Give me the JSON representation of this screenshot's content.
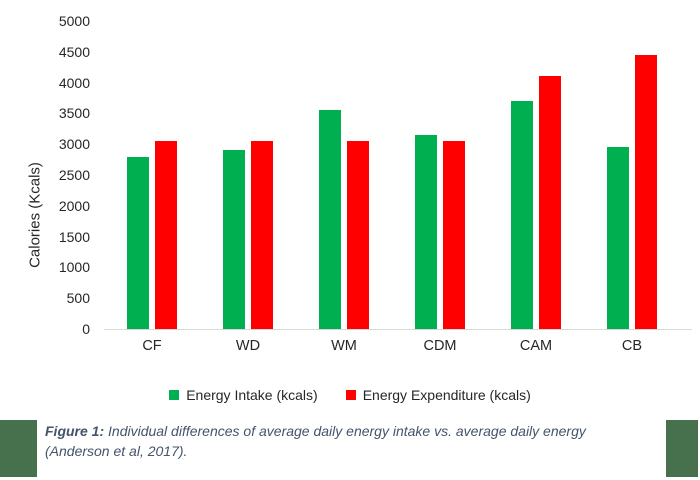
{
  "chart_data": {
    "type": "bar",
    "title": "",
    "xlabel": "",
    "ylabel": "Calories (Kcals)",
    "ylim": [
      0,
      5000
    ],
    "ytick_step": 500,
    "grid": false,
    "legend_position": "bottom",
    "categories": [
      "CF",
      "WD",
      "WM",
      "CDM",
      "CAM",
      "CB"
    ],
    "series": [
      {
        "id": "intake",
        "name": "Energy Intake (kcals)",
        "color": "#00B050",
        "values": [
          2800,
          2900,
          3550,
          3150,
          3700,
          2950
        ]
      },
      {
        "id": "expenditure",
        "name": "Energy Expenditure (kcals)",
        "color": "#FF0000",
        "values": [
          3050,
          3050,
          3050,
          3050,
          4100,
          4450
        ]
      }
    ],
    "axis_line_color": "#D9D9D9",
    "text_color": "#262626"
  },
  "caption": {
    "prefix": "Figure 1:",
    "body_line1": "Individual differences of average daily energy intake vs. average daily energy",
    "body_line2": "(Anderson et al, 2017).",
    "text_color": "#44546A",
    "accent_color": "#47714D"
  }
}
